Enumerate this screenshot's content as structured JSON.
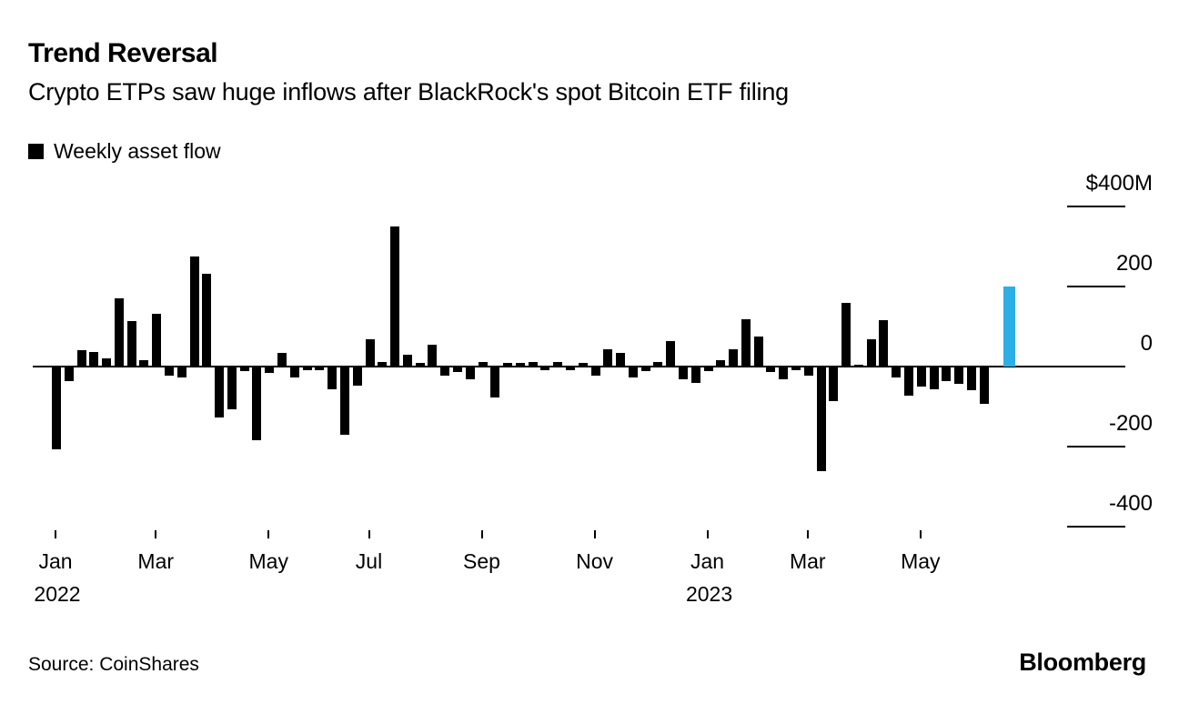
{
  "header": {
    "title": "Trend Reversal",
    "subtitle": "Crypto ETPs saw huge inflows after BlackRock's spot Bitcoin ETF filing"
  },
  "legend": {
    "label": "Weekly asset flow",
    "swatch_color": "#000000"
  },
  "footer": {
    "source": "Source: CoinShares",
    "brand": "Bloomberg"
  },
  "chart_data": {
    "type": "bar",
    "title": "Trend Reversal",
    "series_name": "Weekly asset flow",
    "unit": "$M (millions of US dollars)",
    "x_description": "weekly bars from early Jan 2022 through mid-Jun 2023; null = no bar (gap before highlighted final week)",
    "values": [
      -205,
      -34,
      41,
      37,
      21,
      170,
      114,
      15,
      132,
      -20,
      -25,
      275,
      232,
      -125,
      -105,
      -8,
      -182,
      -14,
      34,
      -25,
      -6,
      -6,
      -54,
      -168,
      -45,
      68,
      11,
      350,
      30,
      10,
      55,
      -20,
      -11,
      -30,
      12,
      -75,
      10,
      8,
      12,
      -7,
      11,
      -6,
      8,
      -20,
      43,
      34,
      -25,
      -10,
      12,
      64,
      -29,
      -39,
      -10,
      16,
      44,
      118,
      76,
      -12,
      -29,
      -7,
      -20,
      -259,
      -85,
      160,
      5,
      69,
      117,
      -26,
      -71,
      -48,
      -54,
      -33,
      -41,
      -56,
      -91,
      null,
      200
    ],
    "highlight_index": 76,
    "highlight_color": "#2bafe6",
    "bar_color": "#000000",
    "ylim": [
      -400,
      400
    ],
    "grid": "short right-side tick dashes only; full horizontal axis line at 0",
    "legend_position": "top-left",
    "yticks": [
      {
        "label": "$400M",
        "value": 400
      },
      {
        "label": "200",
        "value": 200
      },
      {
        "label": "0",
        "value": 0
      },
      {
        "label": "-200",
        "value": -200
      },
      {
        "label": "-400",
        "value": -400
      }
    ],
    "xticks": [
      {
        "label": "Jan",
        "year": "2022",
        "week_index": 0
      },
      {
        "label": "Mar",
        "year": "",
        "week_index": 8
      },
      {
        "label": "May",
        "year": "",
        "week_index": 17
      },
      {
        "label": "Jul",
        "year": "",
        "week_index": 25
      },
      {
        "label": "Sep",
        "year": "",
        "week_index": 34
      },
      {
        "label": "Nov",
        "year": "",
        "week_index": 43
      },
      {
        "label": "Jan",
        "year": "2023",
        "week_index": 52
      },
      {
        "label": "Mar",
        "year": "",
        "week_index": 60
      },
      {
        "label": "May",
        "year": "",
        "week_index": 69
      }
    ]
  }
}
